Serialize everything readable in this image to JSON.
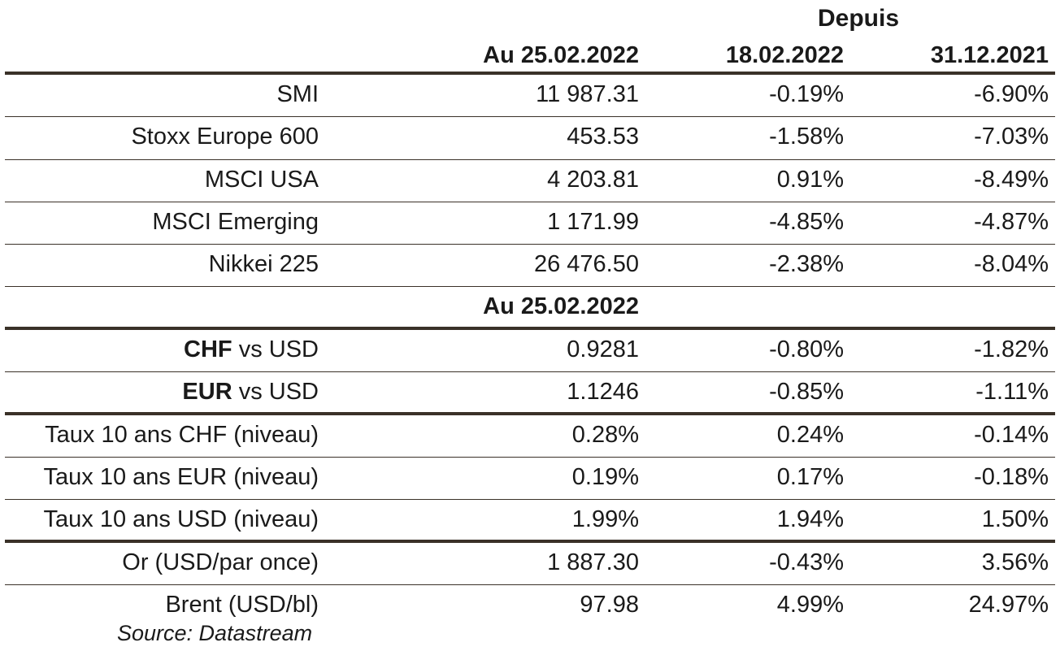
{
  "header": {
    "depuis": "Depuis",
    "col1": "Au 25.02.2022",
    "col2": "18.02.2022",
    "col3": "31.12.2021"
  },
  "rows": [
    {
      "label": "SMI",
      "v1": "11 987.31",
      "v2": "-0.19%",
      "v3": "-6.90%"
    },
    {
      "label": "Stoxx Europe 600",
      "v1": "453.53",
      "v2": "-1.58%",
      "v3": "-7.03%"
    },
    {
      "label": "MSCI USA",
      "v1": "4 203.81",
      "v2": "0.91%",
      "v3": "-8.49%"
    },
    {
      "label": "MSCI Emerging",
      "v1": "1 171.99",
      "v2": "-4.85%",
      "v3": "-4.87%"
    },
    {
      "label": "Nikkei 225",
      "v1": "26 476.50",
      "v2": "-2.38%",
      "v3": "-8.04%"
    }
  ],
  "subheader": "Au 25.02.2022",
  "fx": [
    {
      "code": "CHF",
      "suffix": " vs USD",
      "v1": "0.9281",
      "v2": "-0.80%",
      "v3": "-1.82%"
    },
    {
      "code": "EUR",
      "suffix": " vs USD",
      "v1": "1.1246",
      "v2": "-0.85%",
      "v3": "-1.11%"
    }
  ],
  "rates": [
    {
      "label": "Taux 10 ans CHF (niveau)",
      "v1": "0.28%",
      "v2": "0.24%",
      "v3": "-0.14%"
    },
    {
      "label": "Taux 10 ans EUR (niveau)",
      "v1": "0.19%",
      "v2": "0.17%",
      "v3": "-0.18%"
    },
    {
      "label": "Taux 10 ans USD (niveau)",
      "v1": "1.99%",
      "v2": "1.94%",
      "v3": "1.50%"
    }
  ],
  "commodities": [
    {
      "label": "Or (USD/par once)",
      "v1": "1 887.30",
      "v2": "-0.43%",
      "v3": "3.56%"
    },
    {
      "label": "Brent (USD/bl)",
      "v1": "97.98",
      "v2": "4.99%",
      "v3": "24.97%"
    }
  ],
  "source": "Source: Datastream"
}
